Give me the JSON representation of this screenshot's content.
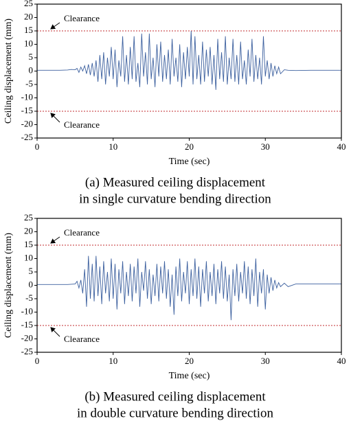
{
  "chart_data": [
    {
      "type": "line",
      "caption_lines": [
        "(a) Measured ceiling displacement",
        "in single curvature bending direction"
      ],
      "x_label": "Time (sec)",
      "y_label": "Ceiling displacement (mm)",
      "xlim": [
        0,
        40
      ],
      "xticks": [
        0,
        10,
        20,
        30,
        40
      ],
      "ylim": [
        -25,
        25
      ],
      "yticks": [
        -25,
        -20,
        -15,
        -10,
        -5,
        0,
        5,
        10,
        15,
        20,
        25
      ],
      "color": "#3b5f9e",
      "grid": false,
      "reference_lines": [
        {
          "value": 15,
          "label": "Clearance"
        },
        {
          "value": -15,
          "label": "Clearance"
        }
      ],
      "reference_color": "#c0282d",
      "x": [
        0,
        1,
        2,
        3,
        4,
        4.5,
        5,
        5.25,
        5.5,
        5.75,
        6,
        6.25,
        6.5,
        6.75,
        7,
        7.25,
        7.5,
        7.75,
        8,
        8.25,
        8.5,
        8.75,
        9,
        9.25,
        9.5,
        9.75,
        10,
        10.25,
        10.5,
        10.75,
        11,
        11.25,
        11.5,
        11.75,
        12,
        12.25,
        12.5,
        12.75,
        13,
        13.25,
        13.5,
        13.75,
        14,
        14.25,
        14.5,
        14.75,
        15,
        15.25,
        15.5,
        15.75,
        16,
        16.25,
        16.5,
        16.75,
        17,
        17.25,
        17.5,
        17.75,
        18,
        18.25,
        18.5,
        18.75,
        19,
        19.25,
        19.5,
        19.75,
        20,
        20.25,
        20.5,
        20.75,
        21,
        21.25,
        21.5,
        21.75,
        22,
        22.25,
        22.5,
        22.75,
        23,
        23.25,
        23.5,
        23.75,
        24,
        24.25,
        24.5,
        24.75,
        25,
        25.25,
        25.5,
        25.75,
        26,
        26.25,
        26.5,
        26.75,
        27,
        27.25,
        27.5,
        27.75,
        28,
        28.25,
        28.5,
        28.75,
        29,
        29.25,
        29.5,
        29.75,
        30,
        30.25,
        30.5,
        30.75,
        31,
        31.25,
        31.5,
        31.75,
        32,
        32.5,
        33,
        34,
        36,
        38,
        40
      ],
      "values": [
        0.3,
        0.3,
        0.3,
        0.3,
        0.4,
        0.6,
        0.5,
        1,
        -0.5,
        1.5,
        0,
        2,
        -1,
        2.5,
        -1.5,
        3,
        -2,
        4,
        -4,
        6,
        -3,
        7,
        -5,
        5,
        -2,
        9,
        -3,
        8,
        -6,
        4,
        -2,
        13,
        -4,
        6,
        -5,
        9,
        -3,
        13,
        -4,
        3,
        -6,
        14,
        -2,
        7,
        -5,
        14,
        -3,
        5,
        -6,
        10,
        -2,
        11,
        -4,
        6,
        -3,
        8,
        -5,
        12,
        -2,
        5,
        -4,
        10,
        -6,
        7,
        -3,
        9,
        -2,
        15,
        -5,
        13,
        -3,
        6,
        -5,
        11,
        -4,
        8,
        -2,
        9,
        -5,
        6,
        -7,
        12,
        -3,
        7,
        -4,
        13,
        -5,
        5,
        -3,
        12,
        -4,
        6,
        -5,
        11,
        -3,
        4,
        -5,
        8,
        -2,
        12,
        -4,
        6,
        -3,
        5,
        -5,
        13,
        -2,
        4,
        -3,
        3,
        -2,
        2,
        -1,
        1.5,
        -1,
        0.5,
        0.3,
        0.2,
        0.3,
        0.3,
        0.3
      ]
    },
    {
      "type": "line",
      "caption_lines": [
        "(b) Measured ceiling displacement",
        "in double curvature bending direction"
      ],
      "x_label": "Time (sec)",
      "y_label": "Ceiling displacement (mm)",
      "xlim": [
        0,
        40
      ],
      "xticks": [
        0,
        10,
        20,
        30,
        40
      ],
      "ylim": [
        -25,
        25
      ],
      "yticks": [
        -25,
        -20,
        -15,
        -10,
        -5,
        0,
        5,
        10,
        15,
        20,
        25
      ],
      "color": "#3b5f9e",
      "grid": false,
      "reference_lines": [
        {
          "value": 15,
          "label": "Clearance"
        },
        {
          "value": -15,
          "label": "Clearance"
        }
      ],
      "reference_color": "#c0282d",
      "x": [
        0,
        1,
        2,
        3,
        4,
        4.5,
        5,
        5.25,
        5.5,
        5.75,
        6,
        6.25,
        6.5,
        6.75,
        7,
        7.25,
        7.5,
        7.75,
        8,
        8.25,
        8.5,
        8.75,
        9,
        9.25,
        9.5,
        9.75,
        10,
        10.25,
        10.5,
        10.75,
        11,
        11.25,
        11.5,
        11.75,
        12,
        12.25,
        12.5,
        12.75,
        13,
        13.25,
        13.5,
        13.75,
        14,
        14.25,
        14.5,
        14.75,
        15,
        15.25,
        15.5,
        15.75,
        16,
        16.25,
        16.5,
        16.75,
        17,
        17.25,
        17.5,
        17.75,
        18,
        18.25,
        18.5,
        18.75,
        19,
        19.25,
        19.5,
        19.75,
        20,
        20.25,
        20.5,
        20.75,
        21,
        21.25,
        21.5,
        21.75,
        22,
        22.25,
        22.5,
        22.75,
        23,
        23.25,
        23.5,
        23.75,
        24,
        24.25,
        24.5,
        24.75,
        25,
        25.25,
        25.5,
        25.75,
        26,
        26.25,
        26.5,
        26.75,
        27,
        27.25,
        27.5,
        27.75,
        28,
        28.25,
        28.5,
        28.75,
        29,
        29.25,
        29.5,
        29.75,
        30,
        30.25,
        30.5,
        30.75,
        31,
        31.25,
        31.5,
        31.75,
        32,
        32.5,
        33,
        34,
        36,
        38,
        40
      ],
      "values": [
        0.3,
        0.3,
        0.3,
        0.3,
        0.3,
        0.4,
        0.5,
        1.5,
        -1,
        2,
        -3,
        6,
        -8,
        11,
        -5,
        8,
        -6,
        11,
        -4,
        7,
        -7,
        9,
        -3,
        5,
        -6,
        10,
        -5,
        8,
        -9,
        6,
        -3,
        9,
        -7,
        5,
        -4,
        8,
        -6,
        7,
        -3,
        10,
        -8,
        5,
        -2,
        9,
        -5,
        6,
        -7,
        4,
        -4,
        8,
        -6,
        7,
        -3,
        9,
        -5,
        6,
        -8,
        4,
        -11,
        7,
        -4,
        10,
        -6,
        5,
        -3,
        9,
        -7,
        6,
        -4,
        10,
        -5,
        7,
        -8,
        6,
        -3,
        9,
        -6,
        5,
        -4,
        8,
        -7,
        6,
        -3,
        9,
        -5,
        7,
        -6,
        4,
        -13,
        6,
        -4,
        8,
        -6,
        5,
        -3,
        9,
        -5,
        7,
        -7,
        6,
        -4,
        10,
        -8,
        5,
        -3,
        6,
        -9,
        4,
        -3,
        3,
        -2,
        2,
        -1,
        1,
        -0.5,
        0.8,
        -0.5,
        0.5,
        0.5,
        0.5,
        0.5
      ]
    }
  ]
}
